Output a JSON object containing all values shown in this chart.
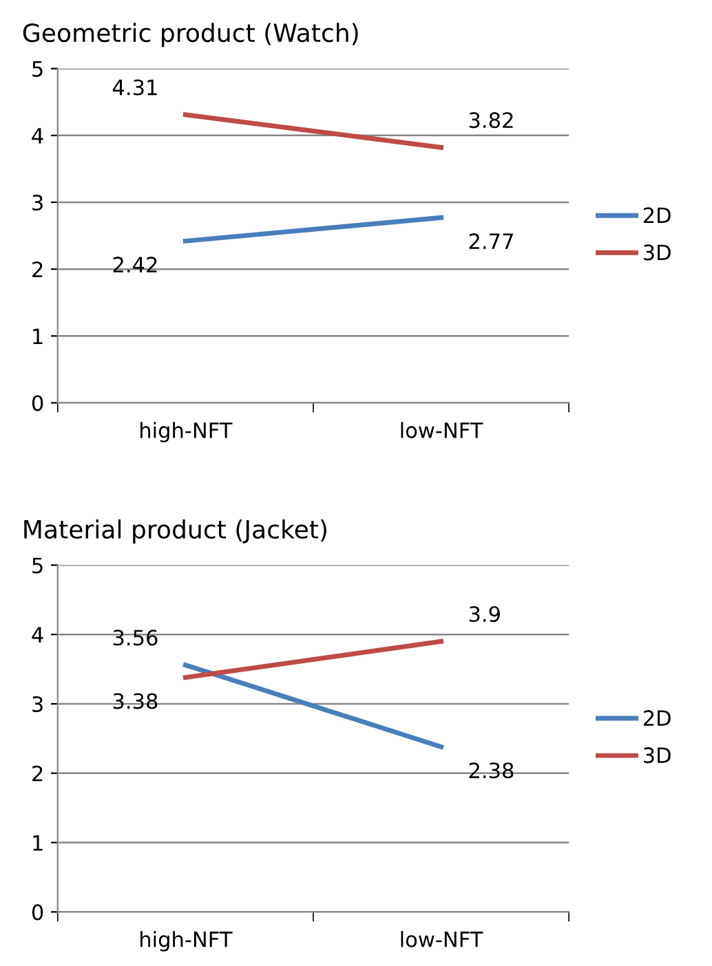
{
  "chart_data": [
    {
      "type": "line",
      "title": "Geometric product (Watch)",
      "categories": [
        "high-NFT",
        "low-NFT"
      ],
      "series": [
        {
          "name": "2D",
          "color": "#4a7ebb",
          "values": [
            2.42,
            2.77
          ]
        },
        {
          "name": "3D",
          "color": "#be4b48",
          "values": [
            4.31,
            3.82
          ]
        }
      ],
      "ylim": [
        0,
        5
      ],
      "yticks": [
        0,
        1,
        2,
        3,
        4,
        5
      ],
      "grid": "y",
      "legend": "right",
      "data_labels": true,
      "marker": "none"
    },
    {
      "type": "line",
      "title": "Material product (Jacket)",
      "categories": [
        "high-NFT",
        "low-NFT"
      ],
      "series": [
        {
          "name": "2D",
          "color": "#4a7ebb",
          "values": [
            3.56,
            2.38
          ]
        },
        {
          "name": "3D",
          "color": "#be4b48",
          "values": [
            3.38,
            3.9
          ]
        }
      ],
      "ylim": [
        0,
        5
      ],
      "yticks": [
        0,
        1,
        2,
        3,
        4,
        5
      ],
      "grid": "y",
      "legend": "right",
      "data_labels": true,
      "marker": "none"
    }
  ]
}
